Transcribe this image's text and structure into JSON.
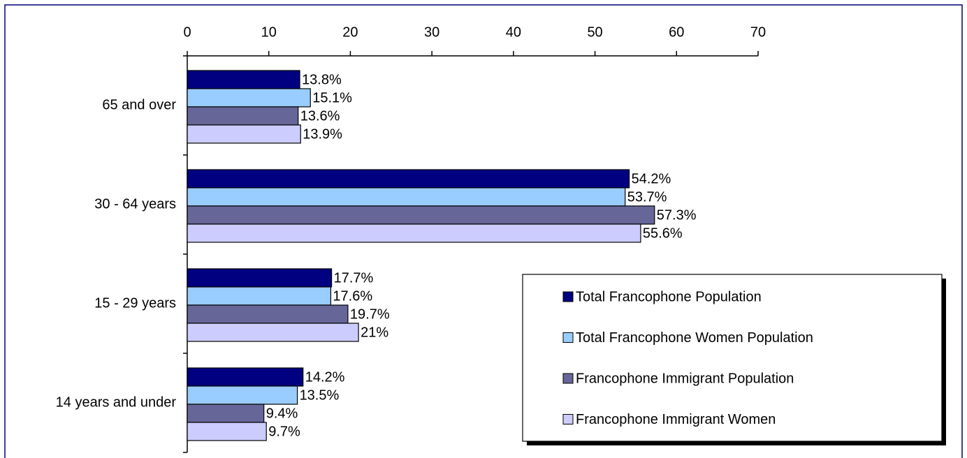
{
  "chart_data": {
    "type": "hbar",
    "categories": [
      "65 and over",
      "30 - 64 years",
      "15 - 29 years",
      "14 years and under"
    ],
    "series": [
      {
        "name": "Total Francophone Population",
        "color": "#000080",
        "values": [
          13.8,
          54.2,
          17.7,
          14.2
        ],
        "value_labels": [
          "13.8%",
          "54.2%",
          "17.7%",
          "14.2%"
        ]
      },
      {
        "name": "Total Francophone Women Population",
        "color": "#99ccff",
        "values": [
          15.1,
          53.7,
          17.6,
          13.5
        ],
        "value_labels": [
          "15.1%",
          "53.7%",
          "17.6%",
          "13.5%"
        ]
      },
      {
        "name": "Francophone Immigrant Population",
        "color": "#666699",
        "values": [
          13.6,
          57.3,
          19.7,
          9.4
        ],
        "value_labels": [
          "13.6%",
          "57.3%",
          "19.7%",
          "9.4%"
        ]
      },
      {
        "name": "Francophone Immigrant Women",
        "color": "#ccccff",
        "values": [
          13.9,
          55.6,
          21,
          9.7
        ],
        "value_labels": [
          "13.9%",
          "55.6%",
          "21%",
          "9.7%"
        ]
      }
    ],
    "xlim": [
      0,
      70
    ],
    "xticks": [
      0,
      10,
      20,
      30,
      40,
      50,
      60,
      70
    ],
    "legend": "lower right"
  }
}
